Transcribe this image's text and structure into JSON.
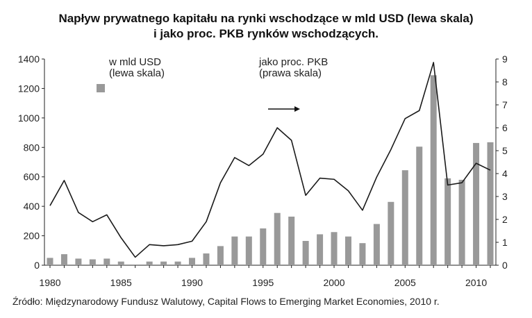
{
  "chart_data": {
    "type": "bar",
    "title_line1": "Napływ prywatnego kapitału na rynki wschodzące w mld USD (lewa skala)",
    "title_line2": "i jako proc. PKB rynków wschodzących.",
    "source": "Źródło: Międzynarodowy Fundusz Walutowy, Capital Flows to Emerging Market Economies, 2010 r.",
    "legend_bar_line1": "w mld USD",
    "legend_bar_line2": "(lewa skala)",
    "legend_line_line1": "jako proc. PKB",
    "legend_line_line2": "(prawa skala)",
    "bar_color": "#999999",
    "line_color": "#1a1a1a",
    "x": [
      1980,
      1981,
      1982,
      1983,
      1984,
      1985,
      1986,
      1987,
      1988,
      1989,
      1990,
      1991,
      1992,
      1993,
      1994,
      1995,
      1996,
      1997,
      1998,
      1999,
      2000,
      2001,
      2002,
      2003,
      2004,
      2005,
      2006,
      2007,
      2008,
      2009,
      2010,
      2011
    ],
    "xlim": [
      1980,
      2011
    ],
    "xticks": [
      1980,
      1985,
      1990,
      1995,
      2000,
      2005,
      2010
    ],
    "series": [
      {
        "axis": "left",
        "type": "bar",
        "values": [
          50,
          75,
          45,
          40,
          45,
          25,
          5,
          25,
          25,
          25,
          50,
          80,
          130,
          195,
          195,
          250,
          355,
          330,
          165,
          210,
          225,
          195,
          150,
          280,
          430,
          645,
          805,
          1290,
          590,
          580,
          830,
          835
        ]
      },
      {
        "axis": "right",
        "type": "line",
        "values": [
          2.6,
          3.7,
          2.3,
          1.9,
          2.2,
          1.2,
          0.35,
          0.9,
          0.85,
          0.9,
          1.05,
          1.9,
          3.6,
          4.7,
          4.35,
          4.85,
          6.0,
          5.45,
          3.05,
          3.8,
          3.75,
          3.25,
          2.4,
          3.85,
          5.05,
          6.4,
          6.75,
          8.85,
          3.5,
          3.6,
          4.45,
          4.15
        ]
      }
    ],
    "ylim_left": [
      0,
      1400
    ],
    "yticks_left": [
      0,
      200,
      400,
      600,
      800,
      1000,
      1200,
      1400
    ],
    "ylim_right": [
      0,
      9
    ],
    "yticks_right": [
      0,
      1,
      2,
      3,
      4,
      5,
      6,
      7,
      8,
      9
    ]
  }
}
